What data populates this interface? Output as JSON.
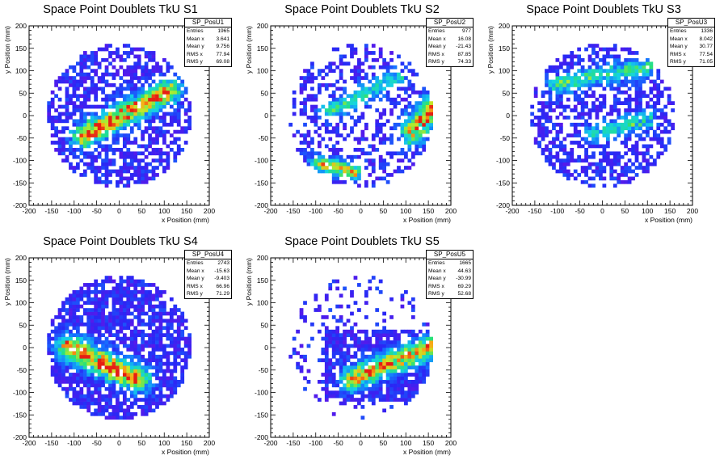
{
  "chart_data": [
    {
      "type": "heatmap",
      "title": "Space Point Doublets TkU S1",
      "xlabel": "x Position (mm)",
      "ylabel": "y Position (mm)",
      "xlim": [
        -200,
        200
      ],
      "ylim": [
        -200,
        200
      ],
      "xticks": [
        -200,
        -150,
        -100,
        -50,
        0,
        50,
        100,
        150,
        200
      ],
      "yticks": [
        -200,
        -150,
        -100,
        -50,
        0,
        50,
        100,
        150,
        200
      ],
      "stats": {
        "name": "SP_PosU1",
        "rows": [
          {
            "label": "Entries",
            "value": "1965"
          },
          {
            "label": "Mean x",
            "value": "3.641"
          },
          {
            "label": "Mean y",
            "value": "9.756"
          },
          {
            "label": "RMS x",
            "value": "77.94"
          },
          {
            "label": "RMS y",
            "value": "69.08"
          }
        ]
      },
      "occupancy": 0.62,
      "coverage": {
        "xmin": -160,
        "xmax": 160,
        "ymin": -160,
        "ymax": 160
      },
      "hotspots": [
        {
          "x1": -80,
          "y1": -45,
          "x2": 110,
          "y2": 55,
          "width": 18,
          "peak": 1.0
        }
      ]
    },
    {
      "type": "heatmap",
      "title": "Space Point Doublets TkU S2",
      "xlabel": "x Position (mm)",
      "ylabel": "y Position (mm)",
      "xlim": [
        -200,
        200
      ],
      "ylim": [
        -200,
        200
      ],
      "xticks": [
        -200,
        -150,
        -100,
        -50,
        0,
        50,
        100,
        150,
        200
      ],
      "yticks": [
        -200,
        -150,
        -100,
        -50,
        0,
        50,
        100,
        150,
        200
      ],
      "stats": {
        "name": "SP_PosU2",
        "rows": [
          {
            "label": "Entries",
            "value": "977"
          },
          {
            "label": "Mean x",
            "value": "16.08"
          },
          {
            "label": "Mean y",
            "value": "-21.43"
          },
          {
            "label": "RMS x",
            "value": "87.85"
          },
          {
            "label": "RMS y",
            "value": "74.33"
          }
        ]
      },
      "occupancy": 0.42,
      "coverage": {
        "xmin": -160,
        "xmax": 160,
        "ymin": -160,
        "ymax": 160
      },
      "hotspots": [
        {
          "x1": -70,
          "y1": 10,
          "x2": 80,
          "y2": 85,
          "width": 14,
          "peak": 0.55
        },
        {
          "x1": 115,
          "y1": -35,
          "x2": 160,
          "y2": 20,
          "width": 20,
          "peak": 0.9
        },
        {
          "x1": -95,
          "y1": -105,
          "x2": -15,
          "y2": -125,
          "width": 12,
          "peak": 0.85
        }
      ]
    },
    {
      "type": "heatmap",
      "title": "Space Point Doublets TkU S3",
      "xlabel": "x Position (mm)",
      "ylabel": "y Position (mm)",
      "xlim": [
        -200,
        200
      ],
      "ylim": [
        -200,
        200
      ],
      "xticks": [
        -200,
        -150,
        -100,
        -50,
        0,
        50,
        100,
        150,
        200
      ],
      "yticks": [
        -200,
        -150,
        -100,
        -50,
        0,
        50,
        100,
        150,
        200
      ],
      "stats": {
        "name": "SP_PosU3",
        "rows": [
          {
            "label": "Entries",
            "value": "1336"
          },
          {
            "label": "Mean x",
            "value": "8.042"
          },
          {
            "label": "Mean y",
            "value": "30.77"
          },
          {
            "label": "RMS x",
            "value": "77.54"
          },
          {
            "label": "RMS y",
            "value": "71.05"
          }
        ]
      },
      "occupancy": 0.55,
      "coverage": {
        "xmin": -160,
        "xmax": 160,
        "ymin": -160,
        "ymax": 160
      },
      "hotspots": [
        {
          "x1": -100,
          "y1": 70,
          "x2": 100,
          "y2": 110,
          "width": 15,
          "peak": 0.55
        },
        {
          "x1": -20,
          "y1": -40,
          "x2": 100,
          "y2": -10,
          "width": 15,
          "peak": 0.5
        }
      ]
    },
    {
      "type": "heatmap",
      "title": "Space Point Doublets TkU S4",
      "xlabel": "x Position (mm)",
      "ylabel": "y Position (mm)",
      "xlim": [
        -200,
        200
      ],
      "ylim": [
        -200,
        200
      ],
      "xticks": [
        -200,
        -150,
        -100,
        -50,
        0,
        50,
        100,
        150,
        200
      ],
      "yticks": [
        -200,
        -150,
        -100,
        -50,
        0,
        50,
        100,
        150,
        200
      ],
      "stats": {
        "name": "SP_PosU4",
        "rows": [
          {
            "label": "Entries",
            "value": "2743"
          },
          {
            "label": "Mean x",
            "value": "-15.63"
          },
          {
            "label": "Mean y",
            "value": "-9.403"
          },
          {
            "label": "RMS x",
            "value": "66.96"
          },
          {
            "label": "RMS y",
            "value": "71.29"
          }
        ]
      },
      "occupancy": 0.78,
      "coverage": {
        "xmin": -160,
        "xmax": 160,
        "ymin": -160,
        "ymax": 160
      },
      "hotspots": [
        {
          "x1": -110,
          "y1": 0,
          "x2": 40,
          "y2": -70,
          "width": 20,
          "peak": 1.0
        }
      ]
    },
    {
      "type": "heatmap",
      "title": "Space Point Doublets TkU S5",
      "xlabel": "x Position (mm)",
      "ylabel": "y Position (mm)",
      "xlim": [
        -200,
        200
      ],
      "ylim": [
        -200,
        200
      ],
      "xticks": [
        -200,
        -150,
        -100,
        -50,
        0,
        50,
        100,
        150,
        200
      ],
      "yticks": [
        -200,
        -150,
        -100,
        -50,
        0,
        50,
        100,
        150,
        200
      ],
      "stats": {
        "name": "SP_PosU5",
        "rows": [
          {
            "label": "Entries",
            "value": "1665"
          },
          {
            "label": "Mean x",
            "value": "44.63"
          },
          {
            "label": "Mean y",
            "value": "-30.99"
          },
          {
            "label": "RMS x",
            "value": "69.29"
          },
          {
            "label": "RMS y",
            "value": "52.68"
          }
        ]
      },
      "occupancy": 0.5,
      "coverage": {
        "xmin": -160,
        "xmax": 160,
        "ymin": -160,
        "ymax": 160
      },
      "dense_region": {
        "xmin": -80,
        "xmax": 160,
        "ymin": -120,
        "ymax": 40
      },
      "hotspots": [
        {
          "x1": -20,
          "y1": -70,
          "x2": 150,
          "y2": 0,
          "width": 18,
          "peak": 0.95
        }
      ]
    }
  ]
}
